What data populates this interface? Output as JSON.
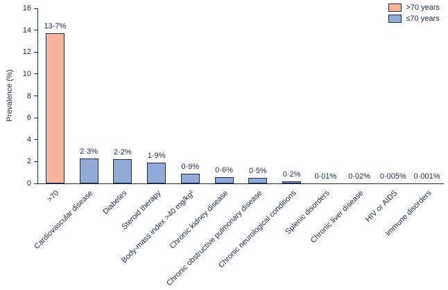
{
  "chart_data": {
    "type": "bar",
    "title": "",
    "xlabel": "",
    "ylabel": "Prevalence (%)",
    "ylim": [
      0,
      16
    ],
    "ytick_step": 2,
    "ytick_labels": [
      "0",
      "2",
      "4",
      "6",
      "8",
      "10",
      "12",
      "14",
      "16"
    ],
    "grid": false,
    "legend_position": "top-right",
    "categories": [
      ">70",
      "Cardiovascular disease",
      "Diabetes",
      "Steroid therapy",
      "Body-mass index >40 mg/kg²",
      "Chronic kidney disease",
      "Chronic obstructive pulmonary disease",
      "Chronic neurological conditions",
      "Splenic disorders",
      "Chronic liver disease",
      "HIV or AIDS",
      "Immune disorders"
    ],
    "values": [
      13.7,
      2.3,
      2.2,
      1.9,
      0.9,
      0.6,
      0.5,
      0.2,
      0.01,
      0.02,
      0.005,
      0.001
    ],
    "value_labels": [
      "13·7%",
      "2·3%",
      "2·2%",
      "1·9%",
      "0·9%",
      "0·6%",
      "0·5%",
      "0·2%",
      "0·01%",
      "0·02%",
      "0·005%",
      "0·001%"
    ],
    "bar_groups": [
      "over70",
      "under70",
      "under70",
      "under70",
      "under70",
      "under70",
      "under70",
      "under70",
      "under70",
      "under70",
      "under70",
      "under70"
    ],
    "colors": {
      "over70_fill": "#f6b598",
      "under70_fill": "#93a9d6",
      "outline": "#1b2a47",
      "text": "#1b2a47"
    },
    "legend": [
      {
        "label": ">70 years",
        "group": "over70",
        "color": "#f6b598"
      },
      {
        "label": "≤70 years",
        "group": "under70",
        "color": "#93a9d6"
      }
    ]
  }
}
